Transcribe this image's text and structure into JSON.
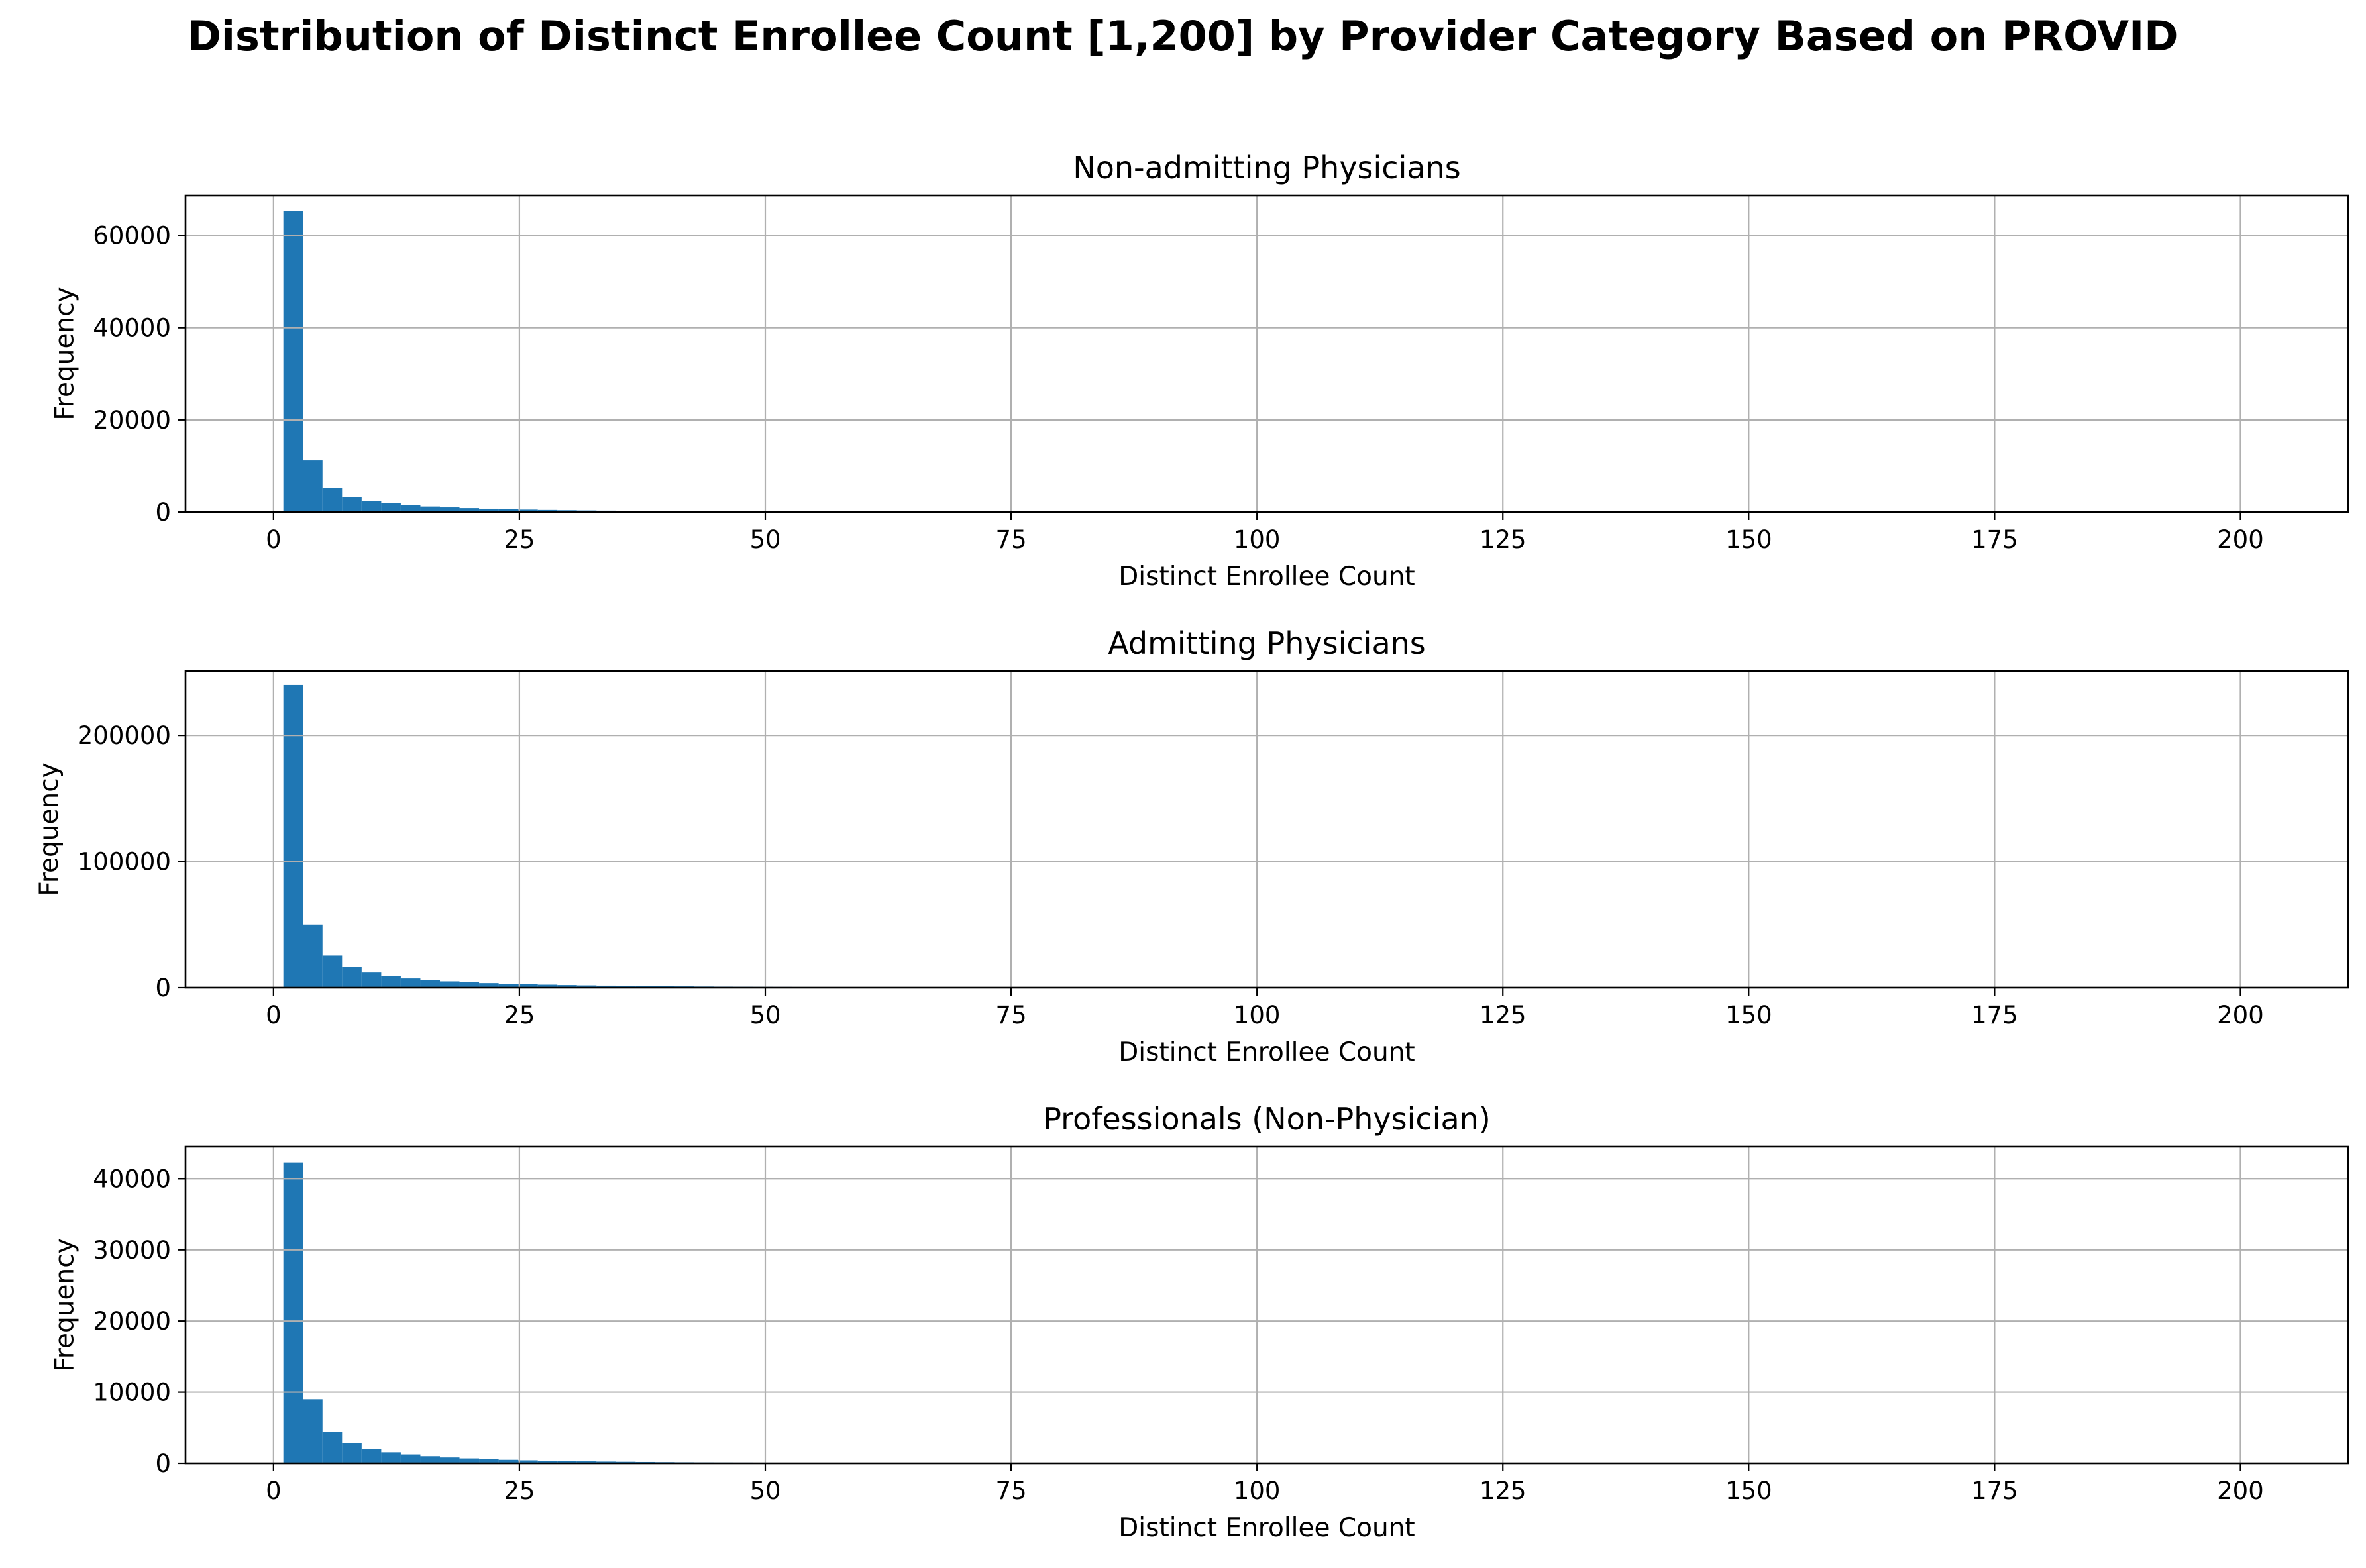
{
  "figure": {
    "title": "Distribution of Distinct Enrollee Count [1,200] by Provider Category Based on PROVID"
  },
  "style": {
    "bar_color": "#1f77b4",
    "grid_color": "#b0b0b0",
    "axis_color": "#000000"
  },
  "chart_data": [
    {
      "type": "bar",
      "title": "Non-admitting Physicians",
      "xlabel": "Distinct Enrollee Count",
      "ylabel": "Frequency",
      "xlim": [
        -8.95,
        210.95
      ],
      "ylim": [
        0,
        68700
      ],
      "grid": true,
      "xticks": [
        0,
        25,
        50,
        75,
        100,
        125,
        150,
        175,
        200
      ],
      "yticks": [
        0,
        20000,
        40000,
        60000
      ],
      "bins": {
        "start": 1,
        "width": 1.99,
        "count": 100
      },
      "values": [
        65300,
        11200,
        5200,
        3300,
        2400,
        1900,
        1500,
        1200,
        1000,
        850,
        720,
        610,
        520,
        450,
        390,
        340,
        300,
        265,
        235,
        210,
        185,
        165,
        150,
        135,
        120,
        110,
        100,
        90,
        82,
        75,
        68,
        62,
        57,
        52,
        48,
        44,
        40,
        37,
        34,
        31,
        29,
        27,
        25,
        23,
        21,
        20,
        18,
        17,
        16,
        15,
        14,
        13,
        12,
        11,
        10,
        10,
        9,
        9,
        8,
        8,
        7,
        7,
        6,
        6,
        6,
        5,
        5,
        5,
        5,
        4,
        4,
        4,
        4,
        3,
        3,
        3,
        3,
        3,
        3,
        2,
        2,
        2,
        2,
        2,
        2,
        2,
        2,
        2,
        2,
        1,
        1,
        1,
        1,
        1,
        1,
        1,
        1,
        1,
        1,
        1
      ]
    },
    {
      "type": "bar",
      "title": "Admitting Physicians",
      "xlabel": "Distinct Enrollee Count",
      "ylabel": "Frequency",
      "xlim": [
        -8.95,
        210.95
      ],
      "ylim": [
        0,
        251000
      ],
      "grid": true,
      "xticks": [
        0,
        25,
        50,
        75,
        100,
        125,
        150,
        175,
        200
      ],
      "yticks": [
        0,
        100000,
        200000
      ],
      "bins": {
        "start": 1,
        "width": 1.99,
        "count": 100
      },
      "values": [
        240000,
        50000,
        25500,
        16500,
        12000,
        9200,
        7300,
        6000,
        5000,
        4200,
        3600,
        3100,
        2700,
        2350,
        2050,
        1800,
        1600,
        1420,
        1270,
        1130,
        1010,
        900,
        810,
        730,
        660,
        600,
        540,
        490,
        445,
        405,
        370,
        338,
        310,
        284,
        260,
        238,
        218,
        200,
        184,
        169,
        155,
        143,
        132,
        122,
        113,
        104,
        96,
        89,
        82,
        76,
        70,
        65,
        60,
        56,
        52,
        48,
        45,
        42,
        39,
        36,
        34,
        32,
        30,
        28,
        26,
        24,
        23,
        21,
        20,
        19,
        18,
        17,
        16,
        15,
        14,
        13,
        12,
        12,
        11,
        10,
        10,
        9,
        9,
        8,
        8,
        7,
        7,
        7,
        6,
        6,
        6,
        5,
        5,
        5,
        5,
        4,
        4,
        4,
        4,
        4
      ]
    },
    {
      "type": "bar",
      "title": "Professionals (Non-Physician)",
      "xlabel": "Distinct Enrollee Count",
      "ylabel": "Frequency",
      "xlim": [
        -8.95,
        210.95
      ],
      "ylim": [
        0,
        44500
      ],
      "grid": true,
      "xticks": [
        0,
        25,
        50,
        75,
        100,
        125,
        150,
        175,
        200
      ],
      "yticks": [
        0,
        10000,
        20000,
        30000,
        40000
      ],
      "bins": {
        "start": 1,
        "width": 1.99,
        "count": 100
      },
      "values": [
        42300,
        9000,
        4400,
        2800,
        2000,
        1550,
        1250,
        1000,
        820,
        690,
        580,
        490,
        420,
        360,
        315,
        275,
        240,
        212,
        188,
        167,
        148,
        132,
        118,
        106,
        95,
        86,
        78,
        70,
        64,
        58,
        53,
        48,
        44,
        40,
        37,
        34,
        31,
        29,
        27,
        25,
        23,
        21,
        19,
        18,
        17,
        16,
        15,
        14,
        13,
        12,
        11,
        10,
        10,
        9,
        9,
        8,
        8,
        7,
        7,
        6,
        6,
        6,
        5,
        5,
        5,
        4,
        4,
        4,
        4,
        3,
        3,
        3,
        3,
        3,
        3,
        2,
        2,
        2,
        2,
        2,
        2,
        2,
        2,
        2,
        1,
        1,
        1,
        1,
        1,
        1,
        1,
        1,
        1,
        1,
        1,
        1,
        1,
        1,
        1,
        1
      ]
    }
  ]
}
